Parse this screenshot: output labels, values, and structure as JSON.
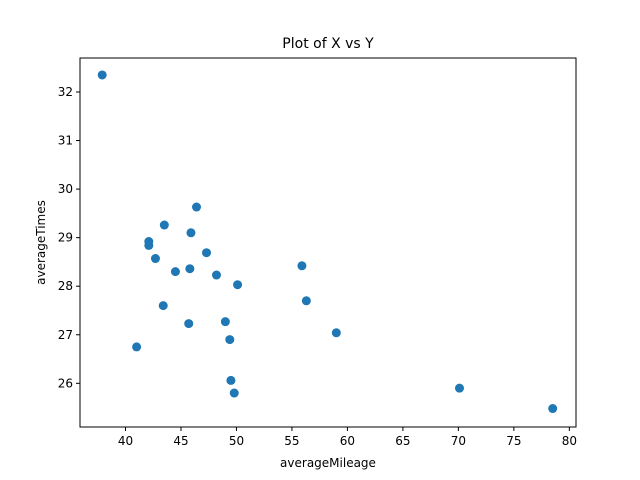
{
  "chart_data": {
    "type": "scatter",
    "title": "Plot of X vs Y",
    "xlabel": "averageMileage",
    "ylabel": "averageTimes",
    "xlim": [
      35.9,
      80.6
    ],
    "ylim": [
      25.1,
      32.7
    ],
    "x_ticks": [
      40,
      45,
      50,
      55,
      60,
      65,
      70,
      75,
      80
    ],
    "y_ticks": [
      26,
      27,
      28,
      29,
      30,
      31,
      32
    ],
    "grid": false,
    "marker_color": "#1f77b4",
    "points": [
      {
        "x": 37.9,
        "y": 32.35
      },
      {
        "x": 41.0,
        "y": 26.75
      },
      {
        "x": 42.1,
        "y": 28.92
      },
      {
        "x": 42.1,
        "y": 28.84
      },
      {
        "x": 42.7,
        "y": 28.57
      },
      {
        "x": 43.4,
        "y": 27.6
      },
      {
        "x": 43.5,
        "y": 29.26
      },
      {
        "x": 44.5,
        "y": 28.3
      },
      {
        "x": 45.7,
        "y": 27.23
      },
      {
        "x": 45.8,
        "y": 28.36
      },
      {
        "x": 45.9,
        "y": 29.1
      },
      {
        "x": 46.4,
        "y": 29.63
      },
      {
        "x": 47.3,
        "y": 28.69
      },
      {
        "x": 48.2,
        "y": 28.23
      },
      {
        "x": 49.0,
        "y": 27.27
      },
      {
        "x": 49.4,
        "y": 26.9
      },
      {
        "x": 49.5,
        "y": 26.06
      },
      {
        "x": 49.8,
        "y": 25.8
      },
      {
        "x": 50.1,
        "y": 28.03
      },
      {
        "x": 55.9,
        "y": 28.42
      },
      {
        "x": 56.3,
        "y": 27.7
      },
      {
        "x": 59.0,
        "y": 27.04
      },
      {
        "x": 70.1,
        "y": 25.9
      },
      {
        "x": 78.5,
        "y": 25.48
      }
    ]
  }
}
